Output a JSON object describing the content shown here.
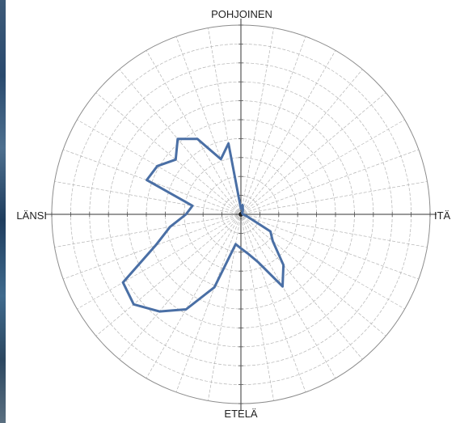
{
  "chart_data": {
    "type": "polar-line",
    "directions": {
      "north": "POHJOINEN",
      "east": "ITÄ",
      "south": "ETELÄ",
      "west": "LÄNSI"
    },
    "radial_range": [
      0,
      10
    ],
    "radial_rings": 10,
    "angular_step_deg": 10,
    "grid": true,
    "series": [
      {
        "color": "#4a6fa5",
        "points": [
          {
            "angle": 0,
            "value": 0.3
          },
          {
            "angle": 10,
            "value": 0.5
          },
          {
            "angle": 20,
            "value": 0.3
          },
          {
            "angle": 30,
            "value": 0.2
          },
          {
            "angle": 40,
            "value": 0.1
          },
          {
            "angle": 50,
            "value": 0.1
          },
          {
            "angle": 60,
            "value": 0.1
          },
          {
            "angle": 70,
            "value": 0.1
          },
          {
            "angle": 80,
            "value": 0.1
          },
          {
            "angle": 90,
            "value": 0.1
          },
          {
            "angle": 100,
            "value": 0.2
          },
          {
            "angle": 110,
            "value": 0.4
          },
          {
            "angle": 120,
            "value": 1.8
          },
          {
            "angle": 130,
            "value": 2.2
          },
          {
            "angle": 140,
            "value": 3.5
          },
          {
            "angle": 150,
            "value": 4.4
          },
          {
            "angle": 160,
            "value": 2.7
          },
          {
            "angle": 170,
            "value": 2.1
          },
          {
            "angle": 180,
            "value": 1.8
          },
          {
            "angle": 190,
            "value": 1.6
          },
          {
            "angle": 200,
            "value": 4.1
          },
          {
            "angle": 210,
            "value": 5.8
          },
          {
            "angle": 220,
            "value": 6.7
          },
          {
            "angle": 230,
            "value": 7.4
          },
          {
            "angle": 240,
            "value": 7.2
          },
          {
            "angle": 250,
            "value": 4.8
          },
          {
            "angle": 260,
            "value": 3.8
          },
          {
            "angle": 270,
            "value": 2.9
          },
          {
            "angle": 280,
            "value": 2.6
          },
          {
            "angle": 290,
            "value": 5.3
          },
          {
            "angle": 300,
            "value": 5.1
          },
          {
            "angle": 310,
            "value": 4.5
          },
          {
            "angle": 320,
            "value": 5.2
          },
          {
            "angle": 330,
            "value": 4.6
          },
          {
            "angle": 340,
            "value": 3.1
          },
          {
            "angle": 350,
            "value": 3.8
          }
        ]
      }
    ]
  }
}
